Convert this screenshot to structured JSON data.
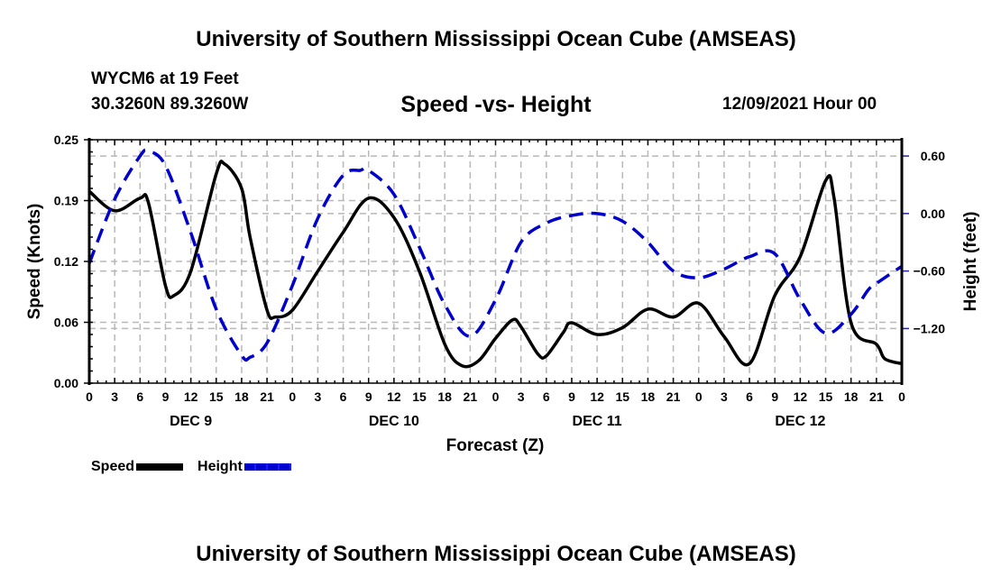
{
  "header": {
    "main_title": "University of Southern Mississippi Ocean Cube (AMSEAS)",
    "station": "WYCM6 at 19 Feet",
    "coordinates": "30.3260N  89.3260W",
    "datetime": "12/09/2021 Hour 00",
    "footer_title": "University of Southern Mississippi Ocean Cube (AMSEAS)"
  },
  "legend": {
    "items": [
      {
        "label": "Speed",
        "color": "#000000",
        "style": "solid"
      },
      {
        "label": "Height",
        "color": "#0000cc",
        "style": "dashed"
      }
    ]
  },
  "chart_data": {
    "type": "line",
    "title": "Speed -vs- Height",
    "xlabel": "Forecast (Z)",
    "ylabel": "Speed (Knots)",
    "y2label": "Height (feet)",
    "x_unit": "forecast hour",
    "xlim": [
      0,
      96
    ],
    "ylim": [
      0.0,
      0.25
    ],
    "y2lim": [
      -1.77,
      0.77
    ],
    "grid": true,
    "legend_position": "bottom-left",
    "x_tick_labels": [
      "0",
      "3",
      "6",
      "9",
      "12",
      "15",
      "18",
      "21",
      "0",
      "3",
      "6",
      "9",
      "12",
      "15",
      "18",
      "21",
      "0",
      "3",
      "6",
      "9",
      "12",
      "15",
      "18",
      "21",
      "0",
      "3",
      "6",
      "9",
      "12",
      "15",
      "18",
      "21",
      "0"
    ],
    "day_labels": [
      {
        "label": "DEC 9",
        "center_hour": 12
      },
      {
        "label": "DEC 10",
        "center_hour": 36
      },
      {
        "label": "DEC 11",
        "center_hour": 60
      },
      {
        "label": "DEC 12",
        "center_hour": 84
      }
    ],
    "y_ticks": [
      "0.00",
      "0.06",
      "0.12",
      "0.19",
      "0.25"
    ],
    "y_tick_values": [
      0.0,
      0.0625,
      0.125,
      0.1875,
      0.25
    ],
    "y2_ticks": [
      "0.60",
      "0.00",
      "-0.60",
      "-1.20"
    ],
    "y2_tick_values": [
      0.6,
      0.0,
      -0.6,
      -1.2
    ],
    "series": [
      {
        "name": "Speed",
        "axis": "left",
        "color": "#000000",
        "x": [
          0,
          3,
          6,
          7,
          9,
          10,
          12,
          15,
          16,
          18,
          19,
          21,
          22,
          24,
          27,
          30,
          33,
          36,
          39,
          42,
          44,
          46,
          48,
          50,
          51,
          53,
          54,
          56,
          57,
          60,
          63,
          66,
          69,
          72,
          75,
          78,
          81,
          84,
          87,
          88,
          90,
          93,
          94,
          96
        ],
        "values": [
          0.197,
          0.177,
          0.19,
          0.185,
          0.1,
          0.09,
          0.115,
          0.215,
          0.225,
          0.2,
          0.15,
          0.075,
          0.068,
          0.075,
          0.115,
          0.155,
          0.19,
          0.17,
          0.115,
          0.04,
          0.018,
          0.023,
          0.046,
          0.065,
          0.058,
          0.03,
          0.028,
          0.052,
          0.062,
          0.05,
          0.057,
          0.076,
          0.068,
          0.082,
          0.048,
          0.02,
          0.09,
          0.13,
          0.208,
          0.19,
          0.062,
          0.04,
          0.025,
          0.02
        ]
      },
      {
        "name": "Height",
        "axis": "right",
        "color": "#0000cc",
        "x": [
          0,
          3,
          6,
          7,
          9,
          12,
          15,
          18,
          19,
          21,
          24,
          27,
          30,
          32,
          33,
          36,
          39,
          42,
          45,
          48,
          51,
          54,
          57,
          60,
          63,
          66,
          69,
          72,
          75,
          78,
          81,
          84,
          87,
          90,
          92,
          93,
          96
        ],
        "values": [
          -0.52,
          0.15,
          0.6,
          0.65,
          0.5,
          -0.2,
          -1.0,
          -1.48,
          -1.5,
          -1.35,
          -0.75,
          -0.05,
          0.4,
          0.45,
          0.45,
          0.2,
          -0.35,
          -0.95,
          -1.28,
          -0.9,
          -0.3,
          -0.1,
          -0.02,
          0.0,
          -0.08,
          -0.3,
          -0.6,
          -0.67,
          -0.58,
          -0.45,
          -0.42,
          -0.9,
          -1.25,
          -1.05,
          -0.8,
          -0.73,
          -0.55
        ]
      }
    ]
  }
}
